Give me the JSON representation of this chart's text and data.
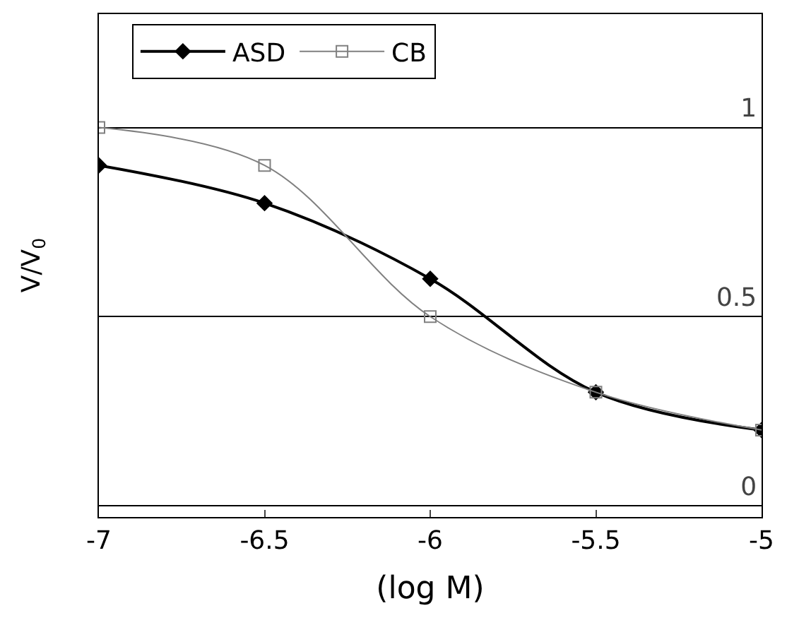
{
  "chart_data": {
    "type": "line",
    "xlabel": "(log M)",
    "ylabel": "V/V$_{0}$",
    "x": [
      -7,
      -6.5,
      -6,
      -5.5,
      -5
    ],
    "series": [
      {
        "name": "ASD",
        "color": "#000000",
        "marker": "diamond",
        "values": [
          0.9,
          0.8,
          0.6,
          0.3,
          0.2
        ]
      },
      {
        "name": "CB",
        "color": "#808080",
        "marker": "square",
        "values": [
          1,
          0.9,
          0.5,
          0.3,
          0.2
        ]
      }
    ],
    "xlim": [
      -7,
      -5
    ],
    "xticks": [
      -7,
      -6.5,
      -6,
      -5.5,
      -5
    ],
    "ylim": [
      -0.03,
      1.3
    ],
    "yticks": [
      0,
      0.5,
      1
    ],
    "grid": "y",
    "legend": "top left"
  }
}
